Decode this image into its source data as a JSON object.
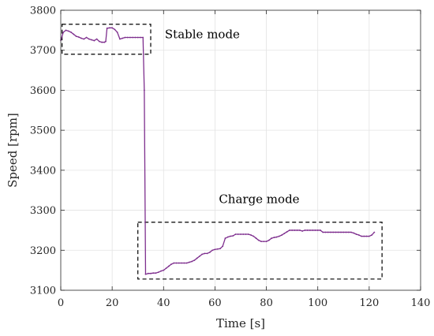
{
  "chart_data": {
    "type": "line",
    "title": "",
    "xlabel": "Time [s]",
    "ylabel": "Speed [rpm]",
    "xlim": [
      0,
      140
    ],
    "ylim": [
      3100,
      3800
    ],
    "xticks": [
      0,
      20,
      40,
      60,
      80,
      100,
      120,
      140
    ],
    "yticks": [
      3100,
      3200,
      3300,
      3400,
      3500,
      3600,
      3700,
      3800
    ],
    "grid": true,
    "series": [
      {
        "color": "#7e2f8e",
        "x": [
          0,
          1,
          2,
          3,
          4,
          5,
          6,
          7,
          8,
          9,
          10,
          11,
          12,
          13,
          14,
          15,
          16,
          17,
          17.5,
          18,
          19,
          20,
          21,
          22,
          23,
          24,
          25,
          26,
          27,
          28,
          29,
          30,
          31,
          32,
          32.5,
          33,
          34,
          35,
          36,
          37,
          38,
          39,
          40,
          41,
          42,
          43,
          44,
          45,
          46,
          47,
          48,
          49,
          50,
          51,
          52,
          53,
          54,
          55,
          56,
          57,
          58,
          59,
          60,
          61,
          62,
          63,
          64,
          65,
          66,
          67,
          68,
          69,
          70,
          71,
          72,
          73,
          74,
          75,
          76,
          77,
          78,
          79,
          80,
          81,
          82,
          83,
          84,
          85,
          86,
          87,
          88,
          89,
          90,
          91,
          92,
          93,
          94,
          95,
          96,
          97,
          98,
          99,
          100,
          101,
          102,
          103,
          104,
          105,
          106,
          107,
          108,
          109,
          110,
          111,
          112,
          113,
          114,
          115,
          116,
          117,
          118,
          119,
          120,
          121,
          122
        ],
        "values": [
          3725,
          3745,
          3750,
          3748,
          3745,
          3740,
          3735,
          3733,
          3730,
          3728,
          3732,
          3728,
          3726,
          3724,
          3728,
          3722,
          3720,
          3720,
          3722,
          3755,
          3756,
          3756,
          3752,
          3745,
          3728,
          3730,
          3732,
          3732,
          3732,
          3732,
          3732,
          3732,
          3732,
          3732,
          3600,
          3140,
          3142,
          3142,
          3143,
          3143,
          3145,
          3148,
          3150,
          3155,
          3160,
          3165,
          3168,
          3168,
          3168,
          3168,
          3168,
          3168,
          3170,
          3172,
          3175,
          3180,
          3185,
          3190,
          3192,
          3192,
          3195,
          3200,
          3202,
          3203,
          3204,
          3210,
          3230,
          3233,
          3235,
          3236,
          3240,
          3240,
          3240,
          3240,
          3240,
          3240,
          3238,
          3235,
          3230,
          3225,
          3222,
          3222,
          3222,
          3225,
          3230,
          3232,
          3233,
          3235,
          3238,
          3242,
          3246,
          3250,
          3250,
          3250,
          3250,
          3250,
          3248,
          3250,
          3250,
          3250,
          3250,
          3250,
          3250,
          3250,
          3245,
          3245,
          3245,
          3245,
          3245,
          3245,
          3245,
          3245,
          3245,
          3245,
          3245,
          3245,
          3243,
          3240,
          3238,
          3235,
          3235,
          3235,
          3235,
          3238,
          3245
        ]
      }
    ],
    "annotations": [
      {
        "label": "Stable mode",
        "box": {
          "x0": 0.5,
          "x1": 35,
          "y0": 3690,
          "y1": 3765
        },
        "text_at": {
          "x": 40.5,
          "y": 3730
        }
      },
      {
        "label": "Charge mode",
        "box": {
          "x0": 30,
          "x1": 125,
          "y0": 3128,
          "y1": 3270
        },
        "text_at": {
          "x": 61.5,
          "y": 3318
        }
      }
    ]
  }
}
